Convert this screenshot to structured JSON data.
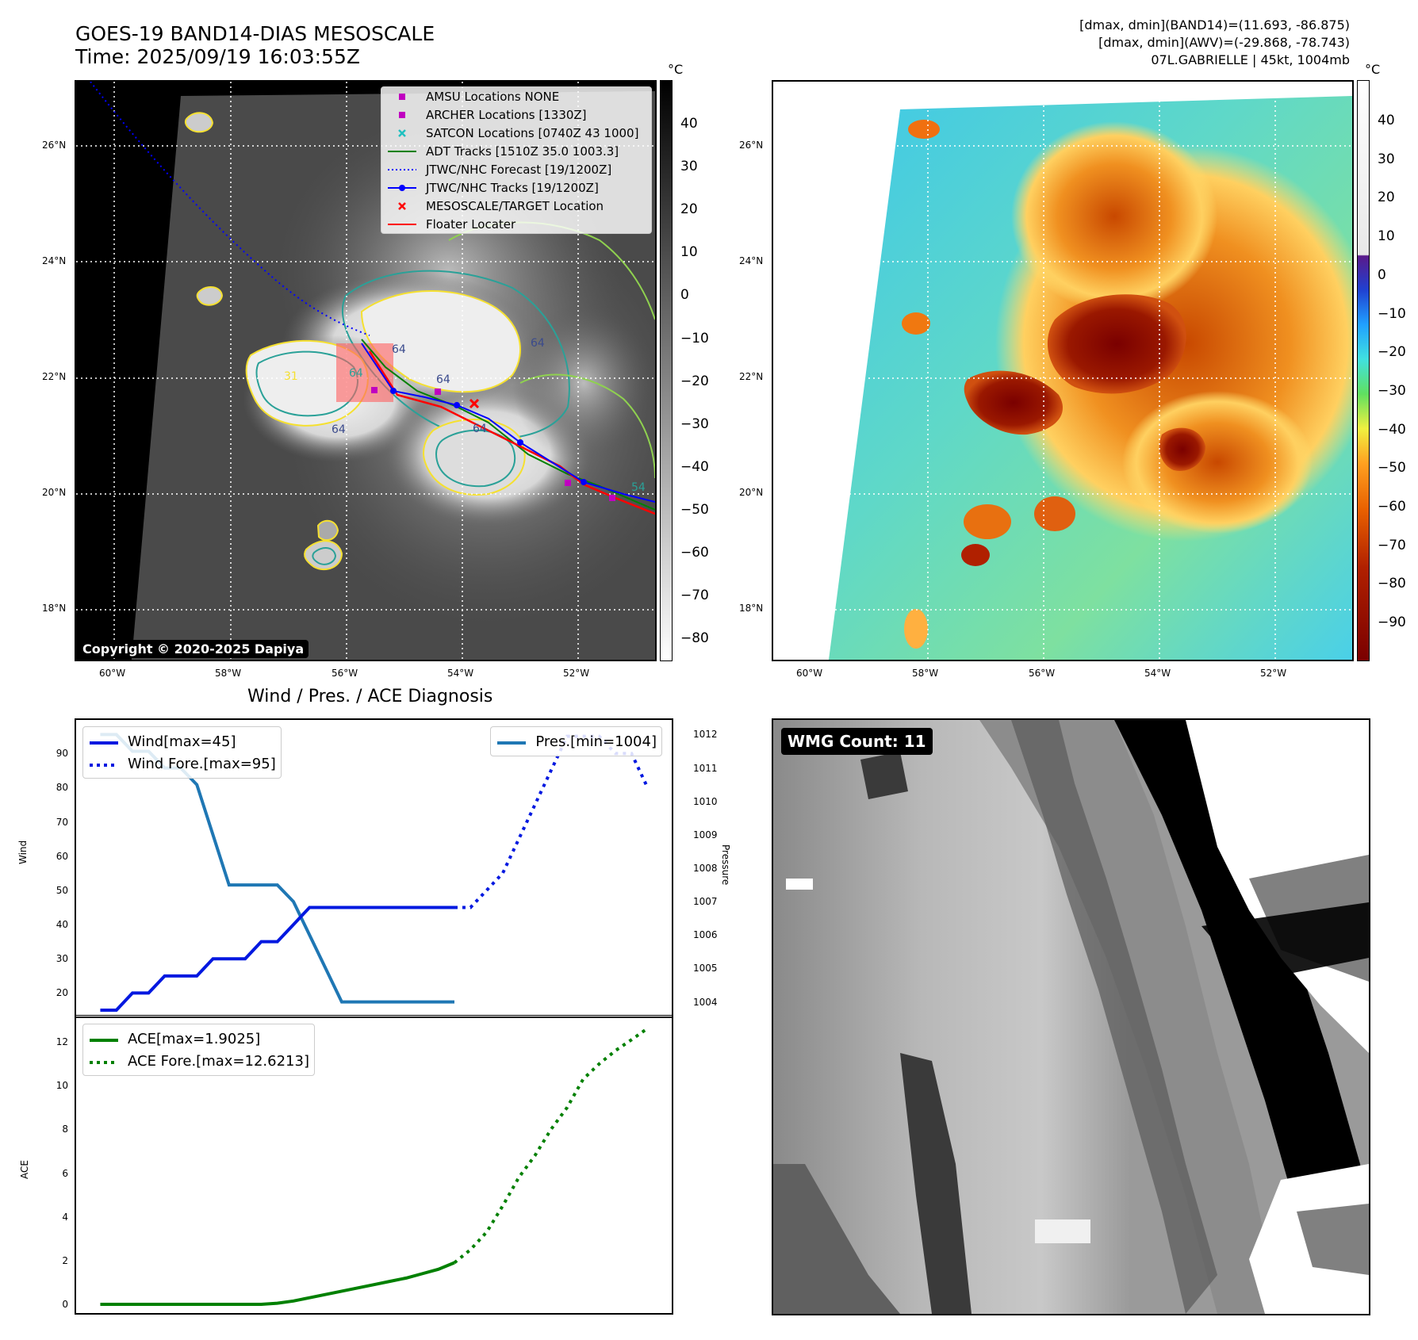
{
  "header": {
    "title_line1": "GOES-19 BAND14-DIAS MESOSCALE",
    "title_line2": "Time: 2025/09/19 16:03:55Z",
    "info_line1": "[dmax, dmin](BAND14)=(11.693, -86.875)",
    "info_line2": "[dmax, dmin](AWV)=(-29.868, -78.743)",
    "info_line3": "07L.GABRIELLE | 45kt, 1004mb"
  },
  "map_left": {
    "lat_labels": [
      "26°N",
      "24°N",
      "22°N",
      "20°N",
      "18°N"
    ],
    "lon_labels": [
      "60°W",
      "58°W",
      "56°W",
      "54°W",
      "52°W"
    ],
    "copyright": "Copyright © 2020-2025 Dapiya",
    "legend": [
      {
        "label": "AMSU Locations NONE",
        "color": "#c000c0",
        "kind": "square"
      },
      {
        "label": "ARCHER Locations [1330Z]",
        "color": "#c000c0",
        "kind": "square"
      },
      {
        "label": "SATCON Locations [0740Z 43 1000]",
        "color": "#20c0c0",
        "kind": "x"
      },
      {
        "label": "ADT Tracks [1510Z 35.0 1003.3]",
        "color": "#008000",
        "kind": "line"
      },
      {
        "label": "JTWC/NHC Forecast [19/1200Z]",
        "color": "#0000ff",
        "kind": "dotted"
      },
      {
        "label": "JTWC/NHC Tracks [19/1200Z]",
        "color": "#0000ff",
        "kind": "linedot"
      },
      {
        "label": "MESOSCALE/TARGET Location",
        "color": "#ff0000",
        "kind": "x"
      },
      {
        "label": "Floater Locater",
        "color": "#ff0000",
        "kind": "line"
      }
    ],
    "contour_labels": [
      "64",
      "64",
      "64",
      "64",
      "64",
      "31",
      "54",
      "64"
    ],
    "colorbar_unit": "°C",
    "colorbar_ticks": [
      "40",
      "30",
      "20",
      "10",
      "0",
      "−10",
      "−20",
      "−30",
      "−40",
      "−50",
      "−60",
      "−70",
      "−80"
    ]
  },
  "map_right": {
    "lat_labels": [
      "26°N",
      "24°N",
      "22°N",
      "20°N",
      "18°N"
    ],
    "lon_labels": [
      "60°W",
      "58°W",
      "56°W",
      "54°W",
      "52°W"
    ],
    "colorbar_unit": "°C",
    "colorbar_ticks": [
      "40",
      "30",
      "20",
      "10",
      "0",
      "−10",
      "−20",
      "−30",
      "−40",
      "−50",
      "−60",
      "−70",
      "−80",
      "−90"
    ]
  },
  "diagnosis": {
    "title": "Wind / Pres. / ACE Diagnosis",
    "wind_axis_label": "Wind",
    "pressure_axis_label": "Pressure",
    "ace_axis_label": "ACE",
    "wind_ticks": [
      "90",
      "80",
      "70",
      "60",
      "50",
      "40",
      "30",
      "20"
    ],
    "pressure_ticks": [
      "1012",
      "1011",
      "1010",
      "1009",
      "1008",
      "1007",
      "1006",
      "1005",
      "1004"
    ],
    "ace_ticks": [
      "12",
      "10",
      "8",
      "6",
      "4",
      "2",
      "0"
    ],
    "legend_wind": "Wind[max=45]",
    "legend_wind_fore": "Wind Fore.[max=95]",
    "legend_pres": "Pres.[min=1004]",
    "legend_ace": "ACE[max=1.9025]",
    "legend_ace_fore": "ACE Fore.[max=12.6213]"
  },
  "wmg": {
    "badge": "WMG Count: 11"
  },
  "chart_data": [
    {
      "type": "line",
      "series": [
        {
          "name": "Wind[max=45]",
          "x": [
            0,
            1,
            2,
            3,
            4,
            5,
            6,
            7,
            8,
            9,
            10,
            11,
            12,
            13,
            14,
            15,
            16,
            17,
            18,
            19,
            20,
            21,
            22
          ],
          "values": [
            15,
            15,
            20,
            20,
            25,
            25,
            25,
            30,
            30,
            30,
            35,
            35,
            40,
            45,
            45,
            45,
            45,
            45,
            45,
            45,
            45,
            45,
            45
          ]
        },
        {
          "name": "Wind Fore.[max=95]",
          "x": [
            22,
            23,
            24,
            25,
            26,
            27,
            28,
            29,
            30,
            31,
            32,
            33,
            34
          ],
          "values": [
            45,
            45,
            50,
            55,
            65,
            75,
            85,
            95,
            95,
            95,
            90,
            90,
            80
          ]
        },
        {
          "name": "Pres.[min=1004]",
          "x": [
            0,
            1,
            2,
            3,
            4,
            5,
            6,
            7,
            8,
            9,
            10,
            11,
            12,
            13,
            14,
            15,
            16,
            17,
            18,
            19,
            20,
            21,
            22
          ],
          "values": [
            1012,
            1012,
            1011.5,
            1011.5,
            1011,
            1011,
            1010.5,
            1009,
            1007.5,
            1007.5,
            1007.5,
            1007.5,
            1007,
            1006,
            1005,
            1004,
            1004,
            1004,
            1004,
            1004,
            1004,
            1004,
            1004
          ]
        }
      ],
      "ylim_wind": [
        15,
        97
      ],
      "ylim_pressure": [
        1003.8,
        1012.2
      ]
    },
    {
      "type": "line",
      "series": [
        {
          "name": "ACE[max=1.9025]",
          "x": [
            0,
            2,
            4,
            6,
            8,
            10,
            11,
            12,
            13,
            14,
            15,
            16,
            17,
            18,
            19,
            20,
            21,
            22
          ],
          "values": [
            0,
            0,
            0,
            0,
            0,
            0,
            0.05,
            0.15,
            0.3,
            0.45,
            0.6,
            0.75,
            0.9,
            1.05,
            1.2,
            1.4,
            1.6,
            1.9025
          ]
        },
        {
          "name": "ACE Fore.[max=12.6213]",
          "x": [
            22,
            23,
            24,
            25,
            26,
            27,
            28,
            29,
            30,
            31,
            32,
            33,
            34
          ],
          "values": [
            1.9025,
            2.5,
            3.3,
            4.5,
            5.8,
            6.8,
            8.0,
            9.0,
            10.3,
            11.0,
            11.6,
            12.1,
            12.6213
          ]
        }
      ],
      "ylim": [
        -0.4,
        13.2
      ]
    }
  ]
}
